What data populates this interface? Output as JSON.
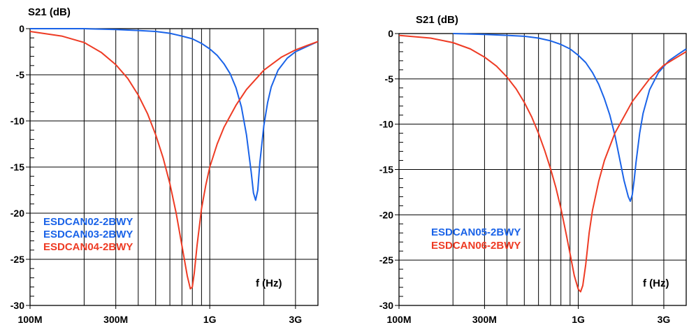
{
  "chart_data": [
    {
      "type": "line",
      "ylabel": "S21 (dB)",
      "xlabel": "f (Hz)",
      "xscale": "log",
      "xlim": [
        100000000,
        4000000000
      ],
      "ylim": [
        -30,
        0
      ],
      "yticks": [
        0,
        -5,
        -10,
        -15,
        -20,
        -25,
        -30
      ],
      "ytick_labels": [
        "0",
        "-5",
        "-10",
        "-15",
        "-20",
        "-25",
        "-30"
      ],
      "xticks": [
        100000000,
        300000000,
        1000000000,
        3000000000
      ],
      "xtick_labels": [
        "100M",
        "300M",
        "1G",
        "3G"
      ],
      "grid": true,
      "legend_position": "bottom-left",
      "series": [
        {
          "name": "ESDCAN02-2BWY",
          "color": "#1a63e8",
          "x": [
            100000000,
            200000000,
            300000000,
            400000000,
            500000000,
            600000000,
            700000000,
            800000000,
            900000000,
            1000000000,
            1100000000,
            1200000000,
            1300000000,
            1400000000,
            1500000000,
            1600000000,
            1700000000,
            1750000000,
            1800000000,
            1850000000,
            1900000000,
            2000000000,
            2100000000,
            2200000000,
            2400000000,
            2700000000,
            3000000000,
            3500000000,
            4000000000
          ],
          "y": [
            0,
            0,
            -0.1,
            -0.2,
            -0.3,
            -0.5,
            -0.8,
            -1.1,
            -1.6,
            -2.2,
            -2.9,
            -3.8,
            -4.9,
            -6.4,
            -8.5,
            -11.5,
            -15.5,
            -17.8,
            -18.6,
            -17.5,
            -14.5,
            -10.5,
            -8.0,
            -6.3,
            -4.5,
            -3.2,
            -2.5,
            -1.9,
            -1.4
          ]
        },
        {
          "name": "ESDCAN03-2BWY",
          "color": "#1a63e8",
          "x": [],
          "y": []
        },
        {
          "name": "ESDCAN04-2BWY",
          "color": "#ee3b24",
          "x": [
            100000000,
            150000000,
            200000000,
            250000000,
            300000000,
            350000000,
            400000000,
            450000000,
            500000000,
            550000000,
            600000000,
            650000000,
            700000000,
            750000000,
            780000000,
            800000000,
            820000000,
            850000000,
            900000000,
            950000000,
            1000000000,
            1100000000,
            1200000000,
            1400000000,
            1600000000,
            2000000000,
            2500000000,
            3000000000,
            3500000000,
            4000000000
          ],
          "y": [
            -0.3,
            -0.8,
            -1.5,
            -2.6,
            -3.9,
            -5.4,
            -7.2,
            -9.2,
            -11.5,
            -14.0,
            -16.8,
            -20.0,
            -23.5,
            -26.8,
            -28.2,
            -28.0,
            -26.5,
            -23.5,
            -19.5,
            -17.0,
            -15.0,
            -12.5,
            -10.7,
            -8.3,
            -6.6,
            -4.5,
            -3.1,
            -2.3,
            -1.8,
            -1.4
          ]
        }
      ]
    },
    {
      "type": "line",
      "ylabel": "S21 (dB)",
      "xlabel": "f (Hz)",
      "xscale": "log",
      "xlim": [
        100000000,
        4000000000
      ],
      "ylim": [
        -30,
        0
      ],
      "yticks": [
        0,
        -5,
        -10,
        -15,
        -20,
        -25,
        -30
      ],
      "ytick_labels": [
        "0",
        "-5",
        "-10",
        "-15",
        "-20",
        "-25",
        "-30"
      ],
      "xticks": [
        100000000,
        300000000,
        1000000000,
        3000000000
      ],
      "xtick_labels": [
        "100M",
        "300M",
        "1G",
        "3G"
      ],
      "grid": true,
      "legend_position": "bottom-left",
      "series": [
        {
          "name": "ESDCAN05-2BWY",
          "color": "#1a63e8",
          "x": [
            200000000,
            300000000,
            400000000,
            500000000,
            600000000,
            700000000,
            800000000,
            900000000,
            1000000000,
            1100000000,
            1200000000,
            1300000000,
            1400000000,
            1500000000,
            1600000000,
            1700000000,
            1800000000,
            1900000000,
            1950000000,
            2000000000,
            2050000000,
            2100000000,
            2200000000,
            2300000000,
            2500000000,
            2800000000,
            3200000000,
            3600000000,
            4000000000
          ],
          "y": [
            0,
            -0.1,
            -0.2,
            -0.3,
            -0.5,
            -0.8,
            -1.2,
            -1.7,
            -2.4,
            -3.2,
            -4.3,
            -5.6,
            -7.2,
            -9.0,
            -11.2,
            -13.8,
            -16.2,
            -18.0,
            -18.5,
            -17.8,
            -16.2,
            -14.2,
            -11.0,
            -8.8,
            -6.2,
            -4.3,
            -3.0,
            -2.3,
            -1.7
          ]
        },
        {
          "name": "ESDCAN06-2BWY",
          "color": "#ee3b24",
          "x": [
            100000000,
            150000000,
            200000000,
            250000000,
            300000000,
            350000000,
            400000000,
            450000000,
            500000000,
            550000000,
            600000000,
            650000000,
            700000000,
            750000000,
            800000000,
            850000000,
            900000000,
            950000000,
            1000000000,
            1030000000,
            1060000000,
            1100000000,
            1150000000,
            1200000000,
            1300000000,
            1400000000,
            1600000000,
            2000000000,
            2500000000,
            3000000000,
            4000000000
          ],
          "y": [
            -0.2,
            -0.5,
            -1.0,
            -1.7,
            -2.6,
            -3.6,
            -4.8,
            -6.1,
            -7.6,
            -9.2,
            -11.0,
            -12.9,
            -14.9,
            -17.0,
            -19.3,
            -21.8,
            -24.3,
            -26.7,
            -28.2,
            -28.5,
            -27.8,
            -25.5,
            -22.0,
            -19.5,
            -16.3,
            -14.0,
            -11.0,
            -7.5,
            -5.0,
            -3.5,
            -2.0
          ]
        }
      ]
    }
  ]
}
